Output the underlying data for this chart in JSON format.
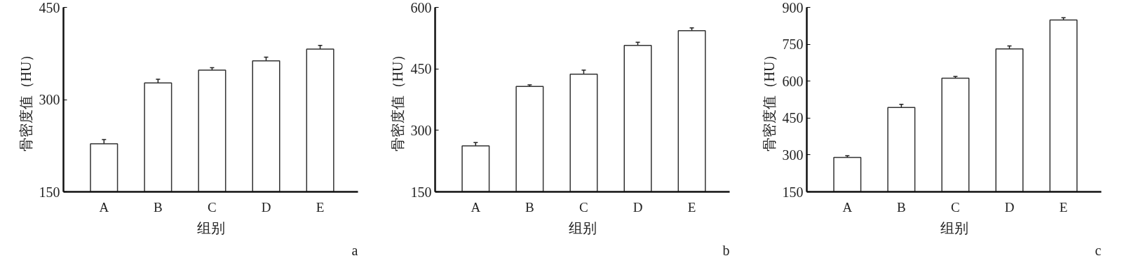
{
  "chart_data": [
    {
      "type": "bar",
      "categories": [
        "A",
        "B",
        "C",
        "D",
        "E"
      ],
      "values": [
        228,
        327,
        348,
        363,
        382
      ],
      "errors": [
        7,
        6,
        4,
        6,
        6
      ],
      "colors": [
        "#ffffff",
        "#ffffff",
        "#ffffff",
        "#ffffff",
        "#ffffff"
      ],
      "ylim": [
        150,
        450
      ],
      "yticks": [
        150,
        300,
        450
      ],
      "xlabel": "组别",
      "ylabel": "骨密度值（HU）",
      "annotations": [
        "a"
      ],
      "grid": false
    },
    {
      "type": "bar",
      "categories": [
        "A",
        "B",
        "C",
        "D",
        "E"
      ],
      "values": [
        262,
        407,
        437,
        507,
        543
      ],
      "errors": [
        8,
        4,
        10,
        8,
        7
      ],
      "colors": [
        "#ffffff",
        "#ffffff",
        "#ffffff",
        "#ffffff",
        "#ffffff"
      ],
      "ylim": [
        150,
        600
      ],
      "yticks": [
        150,
        300,
        450,
        600
      ],
      "xlabel": "组别",
      "ylabel": "骨密度值（HU）",
      "annotations": [
        "b"
      ],
      "grid": false
    },
    {
      "type": "bar",
      "categories": [
        "A",
        "B",
        "C",
        "D",
        "E"
      ],
      "values": [
        290,
        493,
        612,
        731,
        849
      ],
      "errors": [
        7,
        13,
        7,
        12,
        9
      ],
      "colors": [
        "#ffffff",
        "#ffffff",
        "#ffffff",
        "#ffffff",
        "#ffffff"
      ],
      "ylim": [
        150,
        900
      ],
      "yticks": [
        150,
        300,
        450,
        600,
        750,
        900
      ],
      "xlabel": "组别",
      "ylabel": "骨密度值（HU）",
      "annotations": [
        "c"
      ],
      "grid": false
    }
  ]
}
